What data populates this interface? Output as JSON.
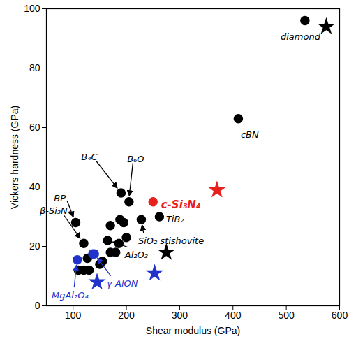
{
  "chart_data": {
    "type": "scatter",
    "x_label": "Shear modulus (GPa)",
    "y_label": "Vickers hardness (GPa)",
    "xlim": [
      50,
      600
    ],
    "xticks": [
      100,
      200,
      300,
      400,
      500,
      600
    ],
    "ylim": [
      0,
      100
    ],
    "yticks": [
      0,
      20,
      40,
      60,
      80,
      100
    ],
    "series": [
      {
        "color": "#000000",
        "marker": "circle",
        "x": [
          535,
          410,
          190,
          205,
          105,
          120,
          262,
          228,
          165,
          110,
          120,
          130,
          127,
          150,
          155,
          170,
          180,
          186,
          200,
          170,
          188,
          195
        ],
        "y": [
          96,
          63,
          38,
          35,
          28,
          21,
          30,
          29,
          22,
          12,
          12,
          12,
          16,
          14,
          15,
          18,
          18,
          21,
          23,
          27,
          29,
          28
        ]
      },
      {
        "color": "#2233cc",
        "marker": "circle",
        "x": [
          108,
          137,
          140
        ],
        "y": [
          15.5,
          17.5,
          17.5
        ]
      },
      {
        "color": "#e8201c",
        "marker": "circle",
        "x": [
          250
        ],
        "y": [
          35
        ]
      },
      {
        "color": "#000000",
        "marker": "star",
        "x": [
          575,
          275
        ],
        "y": [
          94,
          18
        ]
      },
      {
        "color": "#2233cc",
        "marker": "star",
        "x": [
          253,
          145
        ],
        "y": [
          11,
          8
        ]
      },
      {
        "color": "#e8201c",
        "marker": "star",
        "x": [
          370
        ],
        "y": [
          39
        ]
      }
    ],
    "annotations": [
      {
        "text": "diamond",
        "x": 575,
        "y": 94,
        "color": "#000000"
      },
      {
        "text": "cBN",
        "x": 410,
        "y": 63,
        "color": "#000000"
      },
      {
        "text": "B₄C",
        "x": 190,
        "y": 38,
        "color": "#000000"
      },
      {
        "text": "B₆O",
        "x": 205,
        "y": 35,
        "color": "#000000"
      },
      {
        "text": "BP",
        "x": 105,
        "y": 28,
        "color": "#000000"
      },
      {
        "text": "β-Si₃N₄",
        "x": 120,
        "y": 21,
        "color": "#000000"
      },
      {
        "text": "c-Si₃N₄",
        "x": 250,
        "y": 35,
        "color": "#e8201c"
      },
      {
        "text": "TiB₂",
        "x": 262,
        "y": 30,
        "color": "#000000"
      },
      {
        "text": "SiO₂ stishovite",
        "x": 228,
        "y": 29,
        "color": "#000000"
      },
      {
        "text": "Al₂O₃",
        "x": 165,
        "y": 22,
        "color": "#000000"
      },
      {
        "text": "γ-AlON",
        "x": 140,
        "y": 17.5,
        "color": "#2233cc"
      },
      {
        "text": "MgAl₂O₄",
        "x": 108,
        "y": 15.5,
        "color": "#2233cc"
      }
    ]
  }
}
